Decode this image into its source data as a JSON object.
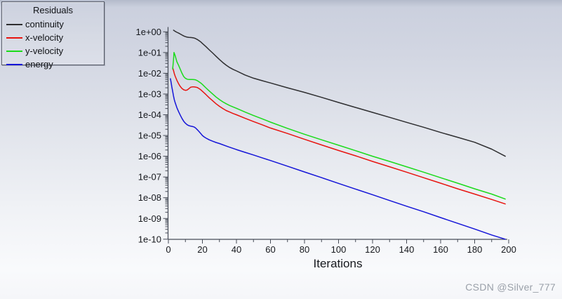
{
  "window": {
    "watermark": "CSDN @Silver_777"
  },
  "legend": {
    "title": "Residuals",
    "items": [
      {
        "label": "continuity",
        "color": "#2e2e30"
      },
      {
        "label": "x-velocity",
        "color": "#e81410"
      },
      {
        "label": "y-velocity",
        "color": "#1bdb1b"
      },
      {
        "label": "energy",
        "color": "#1515d8"
      }
    ]
  },
  "chart_data": {
    "type": "line",
    "title": "Residuals",
    "xlabel": "Iterations",
    "ylabel": "",
    "y_scale": "log",
    "grid": false,
    "legend_position": "top-left",
    "xlim": [
      0,
      200
    ],
    "ylim": [
      1e-10,
      1.0
    ],
    "x_major_ticks": [
      0,
      20,
      40,
      60,
      80,
      100,
      120,
      140,
      160,
      180,
      200
    ],
    "x_minor_tick_step": 10,
    "y_tick_labels": [
      "1e+00",
      "1e-01",
      "1e-02",
      "1e-03",
      "1e-04",
      "1e-05",
      "1e-06",
      "1e-07",
      "1e-08",
      "1e-09",
      "1e-10"
    ],
    "series": [
      {
        "name": "continuity",
        "color": "#2e2e30",
        "points": [
          [
            3,
            1.2
          ],
          [
            4,
            1.05
          ],
          [
            5,
            0.95
          ],
          [
            6,
            0.86
          ],
          [
            7,
            0.78
          ],
          [
            8,
            0.7
          ],
          [
            9,
            0.63
          ],
          [
            10,
            0.585
          ],
          [
            11,
            0.555
          ],
          [
            12,
            0.54
          ],
          [
            13,
            0.532
          ],
          [
            14,
            0.525
          ],
          [
            15,
            0.505
          ],
          [
            16,
            0.47
          ],
          [
            17,
            0.425
          ],
          [
            18,
            0.375
          ],
          [
            19,
            0.325
          ],
          [
            20,
            0.275
          ],
          [
            22,
            0.195
          ],
          [
            24,
            0.135
          ],
          [
            26,
            0.095
          ],
          [
            28,
            0.066
          ],
          [
            30,
            0.046
          ],
          [
            32,
            0.033
          ],
          [
            34,
            0.0245
          ],
          [
            36,
            0.019
          ],
          [
            38,
            0.0155
          ],
          [
            40,
            0.013
          ],
          [
            45,
            0.0083
          ],
          [
            50,
            0.0058
          ],
          [
            55,
            0.0044
          ],
          [
            60,
            0.0034
          ],
          [
            70,
            0.002
          ],
          [
            80,
            0.0012
          ],
          [
            90,
            0.00069
          ],
          [
            100,
            0.00039
          ],
          [
            110,
            0.000225
          ],
          [
            120,
            0.00013
          ],
          [
            130,
            7.5e-05
          ],
          [
            140,
            4.3e-05
          ],
          [
            150,
            2.5e-05
          ],
          [
            160,
            1.4e-05
          ],
          [
            170,
            8.2e-06
          ],
          [
            180,
            4.7e-06
          ],
          [
            190,
            2.2e-06
          ],
          [
            198,
            1e-06
          ]
        ]
      },
      {
        "name": "x-velocity",
        "color": "#e81410",
        "points": [
          [
            2.5,
            0.019
          ],
          [
            3,
            0.0135
          ],
          [
            3.5,
            0.0095
          ],
          [
            4,
            0.0072
          ],
          [
            5,
            0.0046
          ],
          [
            6,
            0.0031
          ],
          [
            7,
            0.0023
          ],
          [
            8,
            0.00185
          ],
          [
            9,
            0.0016
          ],
          [
            10,
            0.0015
          ],
          [
            11,
            0.00155
          ],
          [
            12,
            0.0018
          ],
          [
            13,
            0.0021
          ],
          [
            14,
            0.0022
          ],
          [
            15,
            0.0022
          ],
          [
            16,
            0.00215
          ],
          [
            17,
            0.00205
          ],
          [
            18,
            0.00185
          ],
          [
            19,
            0.0016
          ],
          [
            20,
            0.00135
          ],
          [
            22,
            0.00095
          ],
          [
            24,
            0.00066
          ],
          [
            26,
            0.00047
          ],
          [
            28,
            0.00034
          ],
          [
            30,
            0.000255
          ],
          [
            32,
            0.0002
          ],
          [
            34,
            0.00016
          ],
          [
            36,
            0.000135
          ],
          [
            38,
            0.000115
          ],
          [
            40,
            0.0001
          ],
          [
            45,
            6.8e-05
          ],
          [
            50,
            4.7e-05
          ],
          [
            55,
            3.3e-05
          ],
          [
            60,
            2.3e-05
          ],
          [
            70,
            1.25e-05
          ],
          [
            80,
            6.6e-06
          ],
          [
            90,
            3.5e-06
          ],
          [
            100,
            1.9e-06
          ],
          [
            110,
            1.05e-06
          ],
          [
            120,
            5.6e-07
          ],
          [
            130,
            3.1e-07
          ],
          [
            140,
            1.7e-07
          ],
          [
            150,
            9.2e-08
          ],
          [
            160,
            5e-08
          ],
          [
            170,
            2.7e-08
          ],
          [
            180,
            1.5e-08
          ],
          [
            190,
            8.2e-09
          ],
          [
            198,
            5e-09
          ]
        ]
      },
      {
        "name": "y-velocity",
        "color": "#1bdb1b",
        "points": [
          [
            2.5,
            0.016
          ],
          [
            3,
            0.045
          ],
          [
            3.3,
            0.1
          ],
          [
            4,
            0.07
          ],
          [
            4.5,
            0.05
          ],
          [
            5,
            0.036
          ],
          [
            6,
            0.024
          ],
          [
            7,
            0.0155
          ],
          [
            8,
            0.01
          ],
          [
            9,
            0.007
          ],
          [
            10,
            0.0057
          ],
          [
            11,
            0.0052
          ],
          [
            12,
            0.005
          ],
          [
            13,
            0.005
          ],
          [
            14,
            0.005
          ],
          [
            15,
            0.00495
          ],
          [
            16,
            0.0048
          ],
          [
            17,
            0.0044
          ],
          [
            18,
            0.0039
          ],
          [
            19,
            0.0034
          ],
          [
            20,
            0.0029
          ],
          [
            22,
            0.002
          ],
          [
            24,
            0.0014
          ],
          [
            26,
            0.001
          ],
          [
            28,
            0.00072
          ],
          [
            30,
            0.00054
          ],
          [
            32,
            0.00042
          ],
          [
            34,
            0.00034
          ],
          [
            36,
            0.00028
          ],
          [
            38,
            0.00024
          ],
          [
            40,
            0.000205
          ],
          [
            45,
            0.000135
          ],
          [
            50,
            9.2e-05
          ],
          [
            55,
            6.4e-05
          ],
          [
            60,
            4.4e-05
          ],
          [
            70,
            2.2e-05
          ],
          [
            80,
            1.15e-05
          ],
          [
            90,
            6.2e-06
          ],
          [
            100,
            3.4e-06
          ],
          [
            110,
            1.85e-06
          ],
          [
            120,
            1e-06
          ],
          [
            130,
            5.6e-07
          ],
          [
            140,
            3.1e-07
          ],
          [
            150,
            1.7e-07
          ],
          [
            160,
            9.2e-08
          ],
          [
            170,
            5e-08
          ],
          [
            180,
            2.7e-08
          ],
          [
            190,
            1.5e-08
          ],
          [
            198,
            8.6e-09
          ]
        ]
      },
      {
        "name": "energy",
        "color": "#1515d8",
        "points": [
          [
            1.2,
            0.0055
          ],
          [
            1.6,
            0.0036
          ],
          [
            2,
            0.0023
          ],
          [
            2.5,
            0.00135
          ],
          [
            3,
            0.0008
          ],
          [
            3.5,
            0.00052
          ],
          [
            4,
            0.00038
          ],
          [
            5,
            0.00022
          ],
          [
            6,
            0.00014
          ],
          [
            7,
            9.5e-05
          ],
          [
            8,
            6.6e-05
          ],
          [
            9,
            4.9e-05
          ],
          [
            10,
            3.9e-05
          ],
          [
            11,
            3.3e-05
          ],
          [
            12,
            3e-05
          ],
          [
            13,
            2.85e-05
          ],
          [
            14,
            2.75e-05
          ],
          [
            15,
            2.6e-05
          ],
          [
            16,
            2.3e-05
          ],
          [
            17,
            1.9e-05
          ],
          [
            18,
            1.55e-05
          ],
          [
            19,
            1.25e-05
          ],
          [
            20,
            1e-05
          ],
          [
            21,
            8.6e-06
          ],
          [
            22,
            7.6e-06
          ],
          [
            24,
            6.2e-06
          ],
          [
            26,
            5.3e-06
          ],
          [
            28,
            4.6e-06
          ],
          [
            30,
            4.1e-06
          ],
          [
            35,
            2.9e-06
          ],
          [
            40,
            2.1e-06
          ],
          [
            45,
            1.55e-06
          ],
          [
            50,
            1.15e-06
          ],
          [
            55,
            8.4e-07
          ],
          [
            60,
            6.2e-07
          ],
          [
            70,
            3.3e-07
          ],
          [
            80,
            1.75e-07
          ],
          [
            90,
            9.3e-08
          ],
          [
            100,
            4.9e-08
          ],
          [
            110,
            2.6e-08
          ],
          [
            120,
            1.4e-08
          ],
          [
            130,
            7.3e-09
          ],
          [
            140,
            3.9e-09
          ],
          [
            150,
            2.1e-09
          ],
          [
            160,
            1.1e-09
          ],
          [
            170,
            5.8e-10
          ],
          [
            180,
            3.1e-10
          ],
          [
            190,
            1.6e-10
          ],
          [
            198,
            1e-10
          ]
        ]
      }
    ]
  },
  "colors": {
    "axis": "#474c57",
    "tick_label": "#16181d",
    "background_top": "#cbd0de",
    "background_bottom": "#f9fafc",
    "watermark": "#9aa0a9"
  }
}
